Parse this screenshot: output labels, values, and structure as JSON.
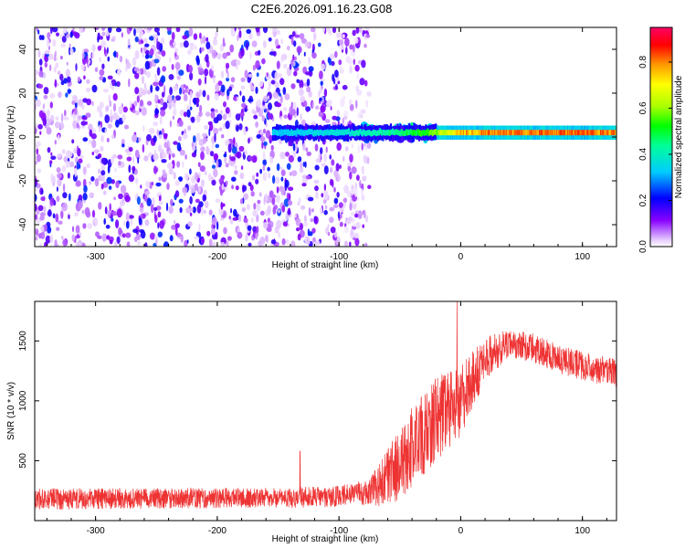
{
  "figure": {
    "title": "C2E6.2026.091.16.23.G08"
  },
  "chart_data": [
    {
      "type": "heatmap",
      "title": "C2E6.2026.091.16.23.G08",
      "xlabel": "Height of straight line (km)",
      "ylabel": "Frequency (Hz)",
      "xlim": [
        -350,
        128
      ],
      "ylim": [
        -50,
        50
      ],
      "x_ticks": [
        -300,
        -200,
        -100,
        0,
        100
      ],
      "x_tick_labels": [
        "-300",
        "-200",
        "-100",
        "0",
        "100"
      ],
      "y_ticks": [
        -40,
        -20,
        0,
        20,
        40
      ],
      "y_tick_labels": [
        "-40",
        "-20",
        "0",
        "20",
        "40"
      ],
      "colorbar": {
        "label": "Normalized spectral amplitude",
        "range": [
          0.0,
          0.95
        ],
        "ticks": [
          0.0,
          0.2,
          0.4,
          0.6,
          0.8
        ],
        "tick_labels": [
          "0.0",
          "0.2",
          "0.4",
          "0.6",
          "0.8"
        ],
        "colormap": "rainbow"
      },
      "features": {
        "noise_region_x": [
          -350,
          -75
        ],
        "noise_amplitude_range": [
          0.02,
          0.25
        ],
        "carrier_start_x": -155,
        "carrier_frequency_hz": 2,
        "carrier_amplitude_by_height": [
          {
            "x": -150,
            "amp": 0.35
          },
          {
            "x": -100,
            "amp": 0.38
          },
          {
            "x": -60,
            "amp": 0.45
          },
          {
            "x": -30,
            "amp": 0.55
          },
          {
            "x": 0,
            "amp": 0.8
          },
          {
            "x": 50,
            "amp": 0.85
          },
          {
            "x": 128,
            "amp": 0.85
          }
        ],
        "transition_spread_x": [
          -80,
          -20
        ],
        "transition_spread_hz": [
          -15,
          10
        ]
      },
      "colors": {
        "background": "#ffffff"
      }
    },
    {
      "type": "line",
      "xlabel": "Height of straight line (km)",
      "ylabel": "SNR (10 * v/v)",
      "xlim": [
        -350,
        128
      ],
      "ylim": [
        0,
        1830
      ],
      "x_ticks": [
        -300,
        -200,
        -100,
        0,
        100
      ],
      "x_tick_labels": [
        "-300",
        "-200",
        "-100",
        "0",
        "100"
      ],
      "y_ticks": [
        500,
        1000,
        1500
      ],
      "y_tick_labels": [
        "500",
        "1000",
        "1500"
      ],
      "series": [
        {
          "name": "SNR",
          "color": "#ee3333",
          "envelope": [
            {
              "x": -350,
              "mean": 180,
              "noise": 90
            },
            {
              "x": -250,
              "mean": 185,
              "noise": 85
            },
            {
              "x": -150,
              "mean": 190,
              "noise": 85
            },
            {
              "x": -100,
              "mean": 200,
              "noise": 90
            },
            {
              "x": -75,
              "mean": 240,
              "noise": 110
            },
            {
              "x": -60,
              "mean": 350,
              "noise": 250
            },
            {
              "x": -40,
              "mean": 600,
              "noise": 350
            },
            {
              "x": -20,
              "mean": 850,
              "noise": 350
            },
            {
              "x": 0,
              "mean": 1000,
              "noise": 300
            },
            {
              "x": 20,
              "mean": 1350,
              "noise": 180
            },
            {
              "x": 40,
              "mean": 1480,
              "noise": 120
            },
            {
              "x": 60,
              "mean": 1440,
              "noise": 120
            },
            {
              "x": 80,
              "mean": 1350,
              "noise": 120
            },
            {
              "x": 100,
              "mean": 1290,
              "noise": 120
            },
            {
              "x": 128,
              "mean": 1230,
              "noise": 120
            }
          ],
          "notable_spikes": [
            {
              "x": -132,
              "value": 580
            },
            {
              "x": -3,
              "value": 1830
            }
          ]
        }
      ]
    }
  ]
}
